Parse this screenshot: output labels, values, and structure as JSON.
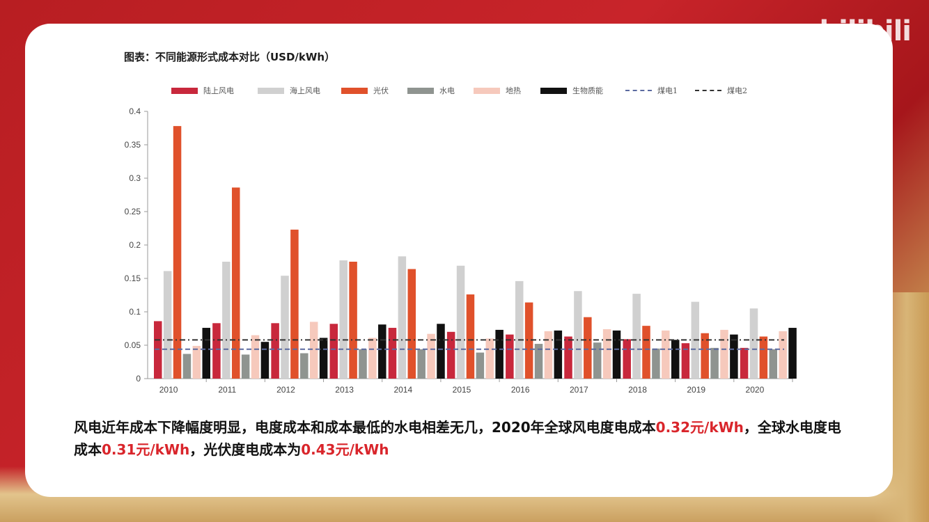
{
  "watermark": "bilibili",
  "chart_title": "图表：不同能源形式成本对比（USD/kWh）",
  "caption": {
    "part1": "风电近年成本下降幅度明显，电度成本和成本最低的水电相差无几，2020年全球风电度电成本",
    "hl1": "0.32元/kWh",
    "part2": "，全球水电度电成本",
    "hl2": "0.31元/kWh",
    "part3": "，光伏度电成本为",
    "hl3": "0.43元/kWh"
  },
  "chart_data": {
    "type": "bar",
    "title": "图表：不同能源形式成本对比（USD/kWh）",
    "xlabel": "",
    "ylabel": "",
    "ylim": [
      0,
      0.4
    ],
    "yticks": [
      "0",
      "0.05",
      "0.1",
      "0.15",
      "0.2",
      "0.25",
      "0.3",
      "0.35",
      "0.4"
    ],
    "grid": false,
    "legend_position": "top",
    "categories": [
      "2010",
      "2011",
      "2012",
      "2013",
      "2014",
      "2015",
      "2016",
      "2017",
      "2018",
      "2019",
      "2020"
    ],
    "series": [
      {
        "name": "陆上风电",
        "color": "#c8283c",
        "values": [
          0.086,
          0.083,
          0.083,
          0.082,
          0.076,
          0.07,
          0.066,
          0.063,
          0.059,
          0.053,
          0.046
        ]
      },
      {
        "name": "海上风电",
        "color": "#d0d0d0",
        "values": [
          0.161,
          0.175,
          0.154,
          0.177,
          0.183,
          0.169,
          0.146,
          0.131,
          0.127,
          0.115,
          0.105
        ]
      },
      {
        "name": "光伏",
        "color": "#e0512b",
        "values": [
          0.378,
          0.286,
          0.223,
          0.175,
          0.164,
          0.126,
          0.114,
          0.092,
          0.079,
          0.068,
          0.063
        ]
      },
      {
        "name": "水电",
        "color": "#8f9490",
        "values": [
          0.037,
          0.036,
          0.038,
          0.044,
          0.044,
          0.039,
          0.052,
          0.054,
          0.045,
          0.046,
          0.044
        ]
      },
      {
        "name": "地热",
        "color": "#f6c9bc",
        "values": [
          0.049,
          0.065,
          0.085,
          0.061,
          0.067,
          0.06,
          0.071,
          0.074,
          0.072,
          0.073,
          0.071
        ]
      },
      {
        "name": "生物质能",
        "color": "#111111",
        "values": [
          0.076,
          0.055,
          0.061,
          0.081,
          0.082,
          0.073,
          0.072,
          0.072,
          0.058,
          0.066,
          0.076
        ]
      }
    ],
    "reference_lines": [
      {
        "name": "煤电1",
        "value": 0.044,
        "style": "dashed",
        "color": "#5b6aa0"
      },
      {
        "name": "煤电2",
        "value": 0.058,
        "style": "dashdot",
        "color": "#333333"
      }
    ]
  }
}
